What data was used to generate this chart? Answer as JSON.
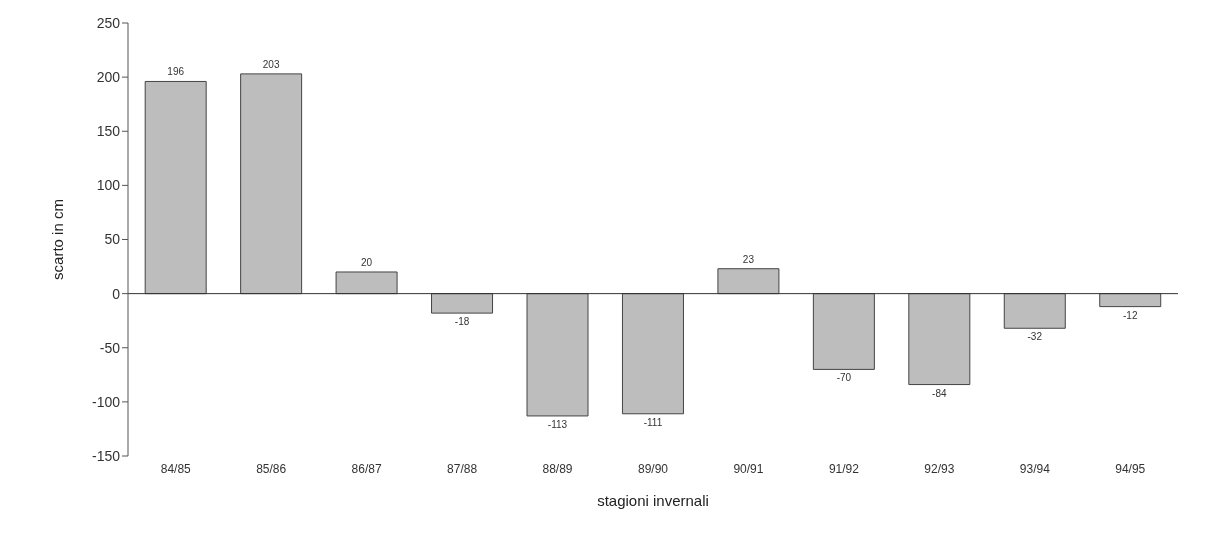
{
  "chart_data": {
    "type": "bar",
    "xlabel": "stagioni invernali",
    "ylabel": "scarto in cm",
    "categories": [
      "84/85",
      "85/86",
      "86/87",
      "87/88",
      "88/89",
      "89/90",
      "90/91",
      "91/92",
      "92/93",
      "93/94",
      "94/95"
    ],
    "values": [
      196,
      203,
      20,
      -18,
      -113,
      -111,
      23,
      -70,
      -84,
      -32,
      -12
    ],
    "color": "#bdbdbd",
    "ylim": [
      -150,
      250
    ],
    "yticks": [
      -150,
      -100,
      -50,
      0,
      50,
      100,
      150,
      200,
      250
    ],
    "ref_lines": [
      {
        "axis": "y",
        "value": 0
      }
    ],
    "data_labels": true
  }
}
